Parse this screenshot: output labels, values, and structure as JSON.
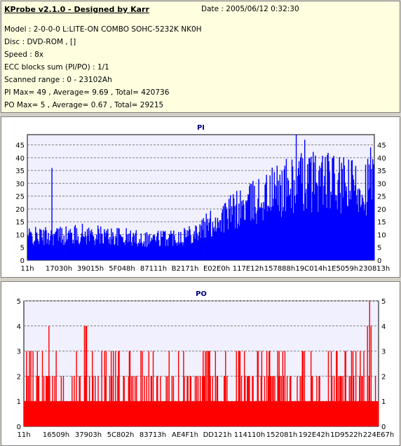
{
  "header": {
    "title": "KProbe v2.1.0 - Designed by Karr",
    "date": "Date : 2005/06/12 0:32:30",
    "lines": [
      "Model : 2-0-0-0 L:LITE-ON COMBO SOHC-5232K NK0H",
      "Disc : DVD-ROM ,  []",
      "Speed : 8x",
      "ECC blocks sum (PI/PO) : 1/1",
      "Scanned range : 0 - 23102Ah",
      "PI Max= 49 , Average= 9.69 , Total= 420736",
      "PO Max= 5 , Average= 0.67 , Total= 29215"
    ]
  },
  "chart_data": [
    {
      "type": "bar",
      "title": "PI",
      "color": "#0000ff",
      "ylim": [
        0,
        49
      ],
      "yticks": [
        0,
        5,
        10,
        15,
        20,
        25,
        30,
        35,
        40,
        45
      ],
      "xticks": [
        "11h",
        "17030h",
        "39015h",
        "5F048h",
        "87111h",
        "B2171h",
        "E02E0h",
        "117E12h",
        "157888h",
        "19C014h",
        "1E5059h",
        "230813h"
      ],
      "grid": true,
      "profile": [
        [
          0,
          10
        ],
        [
          0.04,
          10
        ],
        [
          0.08,
          10.5
        ],
        [
          0.12,
          10.5
        ],
        [
          0.16,
          11
        ],
        [
          0.2,
          10.5
        ],
        [
          0.25,
          10
        ],
        [
          0.3,
          9.5
        ],
        [
          0.35,
          9
        ],
        [
          0.4,
          9.5
        ],
        [
          0.45,
          10.5
        ],
        [
          0.5,
          13
        ],
        [
          0.55,
          17
        ],
        [
          0.6,
          21
        ],
        [
          0.65,
          24
        ],
        [
          0.7,
          28
        ],
        [
          0.75,
          31
        ],
        [
          0.8,
          33
        ],
        [
          0.85,
          34
        ],
        [
          0.9,
          31
        ],
        [
          0.95,
          31
        ],
        [
          1.0,
          32
        ]
      ],
      "spikes": [
        [
          0.07,
          36
        ],
        [
          0.775,
          49
        ],
        [
          0.8,
          47
        ],
        [
          0.99,
          44
        ]
      ],
      "total_bars": 490
    },
    {
      "type": "bar",
      "title": "PO",
      "color": "#ff0000",
      "ylim": [
        0,
        5
      ],
      "yticks": [
        0,
        1,
        2,
        3,
        4,
        5
      ],
      "xticks": [
        "11h",
        "16509h",
        "37903h",
        "5C802h",
        "83713h",
        "AE4F1h",
        "DD121h",
        "114110h",
        "152081h",
        "192E42h",
        "1D9522h",
        "224E67h"
      ],
      "grid": true,
      "baseline": 1,
      "spikes": [
        [
          0.07,
          4
        ],
        [
          0.17,
          4
        ],
        [
          0.175,
          4
        ],
        [
          0.97,
          4
        ],
        [
          0.975,
          5
        ],
        [
          0.98,
          4
        ]
      ],
      "total_bars": 490
    }
  ]
}
